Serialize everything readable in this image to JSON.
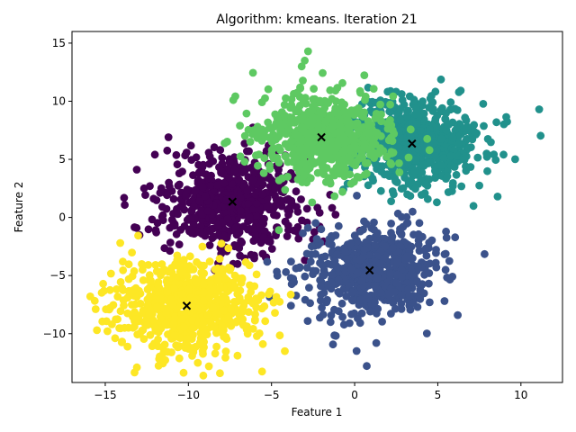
{
  "chart_data": {
    "type": "scatter",
    "title": "Algorithm: kmeans. Iteration 21",
    "xlabel": "Feature 1",
    "ylabel": "Feature 2",
    "xlim": [
      -17,
      12.5
    ],
    "ylim": [
      -14.2,
      16
    ],
    "xticks": [
      -15,
      -10,
      -5,
      0,
      5,
      10
    ],
    "yticks": [
      -10,
      -5,
      0,
      5,
      10,
      15
    ],
    "grid": false,
    "legend": "none",
    "colors": {
      "cluster_0": "#440154",
      "cluster_1": "#3b528b",
      "cluster_2": "#21918c",
      "cluster_3": "#5ec962",
      "cluster_4": "#fde725",
      "centroid": "#000000"
    },
    "clusters": [
      {
        "id": "cluster_0",
        "center": [
          -7.4,
          1.3
        ],
        "spread": [
          2.2,
          2.0
        ],
        "count": 650
      },
      {
        "id": "cluster_1",
        "center": [
          0.9,
          -4.6
        ],
        "spread": [
          2.1,
          2.0
        ],
        "count": 650
      },
      {
        "id": "cluster_2",
        "center": [
          3.4,
          6.4
        ],
        "spread": [
          2.1,
          1.9
        ],
        "count": 650
      },
      {
        "id": "cluster_3",
        "center": [
          -2.0,
          6.9
        ],
        "spread": [
          2.0,
          1.9
        ],
        "count": 650
      },
      {
        "id": "cluster_4",
        "center": [
          -10.1,
          -7.6
        ],
        "spread": [
          2.2,
          2.0
        ],
        "count": 650
      }
    ],
    "outliers": [
      {
        "id": "cluster_2",
        "x": 11.1,
        "y": 9.3
      },
      {
        "id": "cluster_2",
        "x": 8.6,
        "y": 1.8
      },
      {
        "id": "cluster_3",
        "x": -2.8,
        "y": 14.3
      },
      {
        "id": "cluster_3",
        "x": -3.0,
        "y": 13.5
      },
      {
        "id": "cluster_3",
        "x": -7.3,
        "y": 10.1
      },
      {
        "id": "cluster_3",
        "x": -6.9,
        "y": 7.9
      },
      {
        "id": "cluster_4",
        "x": -15.9,
        "y": -6.8
      },
      {
        "id": "cluster_4",
        "x": -15.5,
        "y": -9.7
      },
      {
        "id": "cluster_4",
        "x": -13.1,
        "y": -12.9
      },
      {
        "id": "cluster_4",
        "x": -8.1,
        "y": -13.4
      },
      {
        "id": "cluster_4",
        "x": -4.2,
        "y": -11.5
      },
      {
        "id": "cluster_4",
        "x": -14.1,
        "y": -2.2
      },
      {
        "id": "cluster_0",
        "x": -11.2,
        "y": 6.9
      },
      {
        "id": "cluster_1",
        "x": 6.2,
        "y": -8.4
      },
      {
        "id": "cluster_1",
        "x": 1.3,
        "y": -10.8
      }
    ],
    "centroids": [
      {
        "id": "cluster_0",
        "x": -7.35,
        "y": 1.35
      },
      {
        "id": "cluster_1",
        "x": 0.9,
        "y": -4.55
      },
      {
        "id": "cluster_2",
        "x": 3.45,
        "y": 6.35
      },
      {
        "id": "cluster_3",
        "x": -2.0,
        "y": 6.9
      },
      {
        "id": "cluster_4",
        "x": -10.1,
        "y": -7.6
      }
    ]
  }
}
